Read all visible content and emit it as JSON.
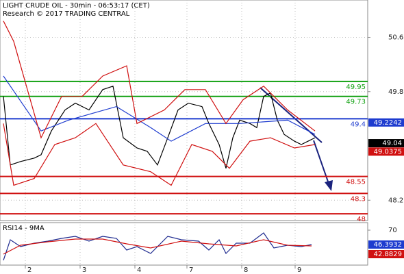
{
  "chart_data": [
    {
      "type": "line",
      "title": "LIGHT CRUDE OIL - 30min - 06:53:17 (CET)",
      "subtitle": "Research © 2017 TRADING CENTRAL",
      "xlim": [
        -0.625,
        66.5
      ],
      "xticks": [
        {
          "value": 4,
          "label": "2"
        },
        {
          "value": 14,
          "label": "3"
        },
        {
          "value": 24,
          "label": "4"
        },
        {
          "value": 33.5,
          "label": "7"
        },
        {
          "value": 43.5,
          "label": "8"
        },
        {
          "value": 53.25,
          "label": "9"
        }
      ],
      "ylim": [
        47.9,
        51.15
      ],
      "yticks": [
        48.2,
        49.8,
        50.6
      ],
      "grid": true,
      "series": [
        {
          "name": "price",
          "color": "#000000",
          "x": [
            0,
            1.25,
            3.125,
            5.625,
            6.875,
            8.75,
            11.25,
            13.125,
            15.625,
            18.125,
            20,
            21.875,
            24.375,
            26.25,
            28.125,
            30,
            31.875,
            33.75,
            36.25,
            37.5,
            39.375,
            40.625,
            41.875,
            43.125,
            45,
            46.25,
            47.5,
            48.75,
            50,
            51.25,
            53.125,
            54.375,
            55.625,
            56.875
          ],
          "values": [
            49.73,
            48.72,
            48.77,
            48.82,
            48.87,
            49.22,
            49.53,
            49.63,
            49.53,
            49.83,
            49.88,
            49.12,
            48.97,
            48.92,
            48.72,
            49.12,
            49.53,
            49.63,
            49.58,
            49.33,
            49.02,
            48.67,
            49.12,
            49.38,
            49.33,
            49.27,
            49.73,
            49.78,
            49.38,
            49.17,
            49.07,
            49.02,
            49.07,
            49.12
          ]
        },
        {
          "name": "ma",
          "color": "#1e3ccf",
          "x": [
            0,
            6.875,
            11.875,
            20.625,
            26.875,
            30.625,
            36.875,
            43.125,
            51.875,
            56.875
          ],
          "values": [
            50.03,
            49.22,
            49.38,
            49.58,
            49.27,
            49.07,
            49.33,
            49.33,
            49.38,
            49.17
          ]
        },
        {
          "name": "upper",
          "color": "#d01010",
          "x": [
            0,
            1.875,
            6.875,
            10.625,
            14.375,
            18.125,
            22.5,
            24.375,
            29.375,
            33.125,
            36.875,
            40.625,
            43.75,
            47.5,
            51.875,
            56.875
          ],
          "values": [
            50.84,
            50.54,
            49.12,
            49.73,
            49.73,
            50.03,
            50.18,
            49.33,
            49.53,
            49.83,
            49.83,
            49.33,
            49.68,
            49.88,
            49.53,
            49.22
          ]
        },
        {
          "name": "lower",
          "color": "#d01010",
          "x": [
            0,
            1.875,
            5.625,
            9.375,
            13.125,
            16.875,
            21.875,
            26.875,
            30.625,
            34.375,
            38.125,
            41.25,
            45,
            48.75,
            53.125,
            56.875
          ],
          "values": [
            49.33,
            48.42,
            48.52,
            49.02,
            49.12,
            49.33,
            48.72,
            48.62,
            48.42,
            49.02,
            48.92,
            48.67,
            49.07,
            49.12,
            48.97,
            49.02
          ]
        }
      ],
      "levels": [
        {
          "value": 49.95,
          "color": "#10a010"
        },
        {
          "value": 49.73,
          "color": "#10a010"
        },
        {
          "value": 49.4,
          "color": "#1e3ccf"
        },
        {
          "value": 48.55,
          "color": "#d01010"
        },
        {
          "value": 48.3,
          "color": "#d01010"
        },
        {
          "value": 48,
          "color": "#d01010"
        }
      ],
      "price_boxes": [
        {
          "value": 49.2242,
          "color": "#1e3ccf"
        },
        {
          "value": 49.04,
          "color": "#000000"
        },
        {
          "value": 49.0375,
          "color": "#d01010"
        }
      ]
    },
    {
      "type": "line",
      "title": "RSI14 - 9MA",
      "xlim": [
        -0.625,
        66.5
      ],
      "ylim": [
        19,
        81
      ],
      "yticks": [
        70
      ],
      "series": [
        {
          "name": "rsi",
          "color": "#1e2a8f",
          "x": [
            0,
            1.25,
            3.125,
            5.625,
            8.125,
            10.625,
            13.125,
            15.625,
            18.125,
            20.625,
            22.5,
            24.375,
            26.875,
            30,
            32.5,
            35.625,
            37.5,
            39.375,
            40.625,
            42.5,
            45,
            47.5,
            49.375,
            51.875,
            54.375,
            56.25
          ],
          "values": [
            26,
            56,
            46,
            51,
            54,
            58,
            61,
            54,
            61,
            58,
            41,
            46,
            36,
            61,
            56,
            54,
            41,
            56,
            36,
            51,
            51,
            66,
            44,
            48,
            46,
            49
          ]
        },
        {
          "name": "signal",
          "color": "#d01010",
          "x": [
            0,
            3.125,
            8.125,
            13.125,
            18.125,
            22.5,
            26.875,
            32.5,
            37.5,
            42.5,
            47.5,
            51.875,
            56.25
          ],
          "values": [
            35,
            48,
            53,
            57,
            57,
            50,
            44,
            54,
            50,
            47,
            56,
            48,
            47
          ]
        }
      ],
      "price_boxes": [
        {
          "value": 46.3932,
          "color": "#1e3ccf"
        },
        {
          "value": 42.8829,
          "color": "#d01010"
        }
      ]
    }
  ]
}
